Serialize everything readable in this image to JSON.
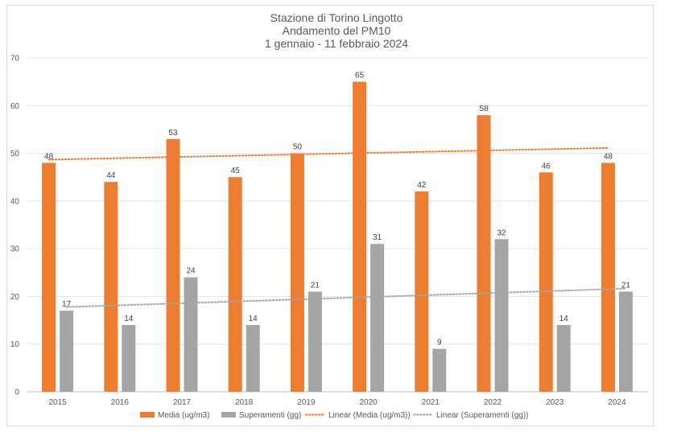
{
  "chart_data": {
    "type": "bar",
    "title": [
      "Stazione di Torino Lingotto",
      "Andamento del PM10",
      "1 gennaio - 11 febbraio 2024"
    ],
    "categories": [
      "2015",
      "2016",
      "2017",
      "2018",
      "2019",
      "2020",
      "2021",
      "2022",
      "2023",
      "2024"
    ],
    "series": [
      {
        "name": "Media (ug/m3)",
        "values": [
          48,
          44,
          53,
          45,
          50,
          65,
          42,
          58,
          46,
          48
        ]
      },
      {
        "name": "Superamenti (gg)",
        "values": [
          17,
          14,
          24,
          14,
          21,
          31,
          9,
          32,
          14,
          21
        ]
      }
    ],
    "trendlines": [
      {
        "name": "Linear (Media (ug/m3))",
        "of": "Media (ug/m3)",
        "type": "linear"
      },
      {
        "name": "Linear (Superamenti (gg))",
        "of": "Superamenti (gg)",
        "type": "linear"
      }
    ],
    "ylim": [
      0,
      70
    ],
    "yticks": [
      0,
      10,
      20,
      30,
      40,
      50,
      60,
      70
    ],
    "grid": true,
    "legend_position": "bottom",
    "colors": {
      "Media (ug/m3)": "#ed7d31",
      "Superamenti (gg)": "#a5a5a5"
    }
  }
}
